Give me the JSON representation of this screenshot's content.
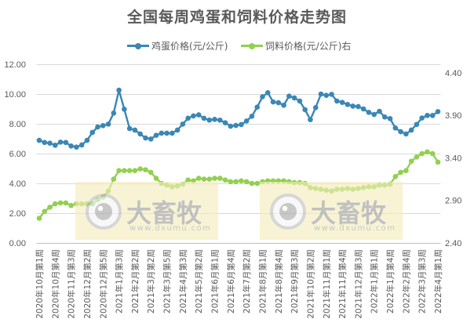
{
  "title": "全国每周鸡蛋和饲料价格走势图",
  "legend": [
    {
      "label": "鸡蛋价格(元/公斤)",
      "color": "#3a87b5",
      "icon": "line-with-dot-marker"
    },
    {
      "label": "饲料价格(元/公斤)右",
      "color": "#92d050",
      "icon": "line-with-dot-marker"
    }
  ],
  "watermark": {
    "brand": "大畜牧",
    "url": "www.dxumu.com",
    "icon": "eye-circle-logo",
    "box_color": "#f5edbb"
  },
  "colors": {
    "egg": "#3a87b5",
    "feed": "#92d050",
    "grid": "#d9d9d9",
    "text": "#595959"
  },
  "chart_data": {
    "type": "line",
    "title": "全国每周鸡蛋和饲料价格走势图",
    "xlabel": "",
    "ylabel": "",
    "grid": true,
    "legend_position": "top",
    "tick_interval": 3,
    "tick_labels": [
      "2020年10月第1周",
      "2020年10月第4周",
      "2020年11月第3周",
      "2020年12月第2周",
      "2020年12月第5周",
      "2021年1月第3周",
      "2021年2月第2周",
      "2021年3月第2周",
      "2021年3月第5周",
      "2021年4月第3周",
      "2021年5月第2周",
      "2021年6月第1周",
      "2021年6月第4周",
      "2021年7月第2周",
      "2021年8月第1周",
      "2021年8月第4周",
      "2021年9月第3周",
      "2021年10月第2周",
      "2021年11月第1周",
      "2021年11月第4周",
      "2021年12月第3周",
      "2022年1月第1周",
      "2022年1月第4周",
      "2022年2月第4周",
      "2022年3月第3周",
      "2022年4月第1周"
    ],
    "left_axis": {
      "ylim": [
        0,
        12
      ],
      "ticks": [
        0,
        2,
        4,
        6,
        8,
        10,
        12
      ],
      "tick_labels": [
        "0.00",
        "2.00",
        "4.00",
        "6.00",
        "8.00",
        "10.00",
        "12.00"
      ]
    },
    "right_axis": {
      "ylim": [
        2.4,
        4.5
      ],
      "ticks": [
        2.4,
        2.9,
        3.4,
        3.9,
        4.4
      ],
      "tick_labels": [
        "2.40",
        "2.90",
        "3.40",
        "3.90",
        "4.40"
      ]
    },
    "series": [
      {
        "name": "鸡蛋价格(元/公斤)",
        "axis": "left",
        "color": "#3a87b5",
        "values": [
          6.89,
          6.75,
          6.7,
          6.56,
          6.77,
          6.75,
          6.51,
          6.44,
          6.58,
          6.89,
          7.42,
          7.79,
          7.88,
          7.98,
          8.72,
          10.26,
          8.98,
          7.68,
          7.58,
          7.32,
          7.05,
          6.98,
          7.23,
          7.37,
          7.37,
          7.37,
          7.58,
          7.98,
          8.38,
          8.53,
          8.6,
          8.37,
          8.25,
          8.3,
          8.25,
          8.07,
          7.84,
          7.89,
          7.95,
          8.19,
          8.51,
          9.12,
          9.82,
          10.09,
          9.47,
          9.42,
          9.25,
          9.86,
          9.74,
          9.53,
          8.95,
          8.28,
          9.09,
          10.0,
          9.91,
          9.98,
          9.53,
          9.44,
          9.3,
          9.19,
          9.16,
          9.0,
          8.77,
          8.63,
          8.84,
          8.46,
          8.35,
          7.72,
          7.47,
          7.32,
          7.58,
          7.96,
          8.39,
          8.56,
          8.56,
          8.82
        ]
      },
      {
        "name": "饲料价格(元/公斤)右",
        "axis": "right",
        "color": "#92d050",
        "values": [
          2.69,
          2.77,
          2.82,
          2.86,
          2.87,
          2.87,
          2.84,
          2.86,
          2.86,
          2.86,
          2.86,
          2.91,
          2.94,
          3.01,
          3.15,
          3.25,
          3.25,
          3.25,
          3.25,
          3.27,
          3.26,
          3.23,
          3.16,
          3.1,
          3.08,
          3.06,
          3.07,
          3.09,
          3.14,
          3.13,
          3.16,
          3.15,
          3.15,
          3.16,
          3.16,
          3.14,
          3.12,
          3.12,
          3.13,
          3.12,
          3.1,
          3.1,
          3.12,
          3.13,
          3.13,
          3.13,
          3.13,
          3.12,
          3.11,
          3.11,
          3.1,
          3.05,
          3.04,
          3.03,
          3.02,
          3.01,
          3.03,
          3.03,
          3.04,
          3.03,
          3.04,
          3.05,
          3.06,
          3.06,
          3.08,
          3.08,
          3.09,
          3.18,
          3.23,
          3.25,
          3.36,
          3.41,
          3.45,
          3.47,
          3.45,
          3.35
        ]
      }
    ]
  }
}
